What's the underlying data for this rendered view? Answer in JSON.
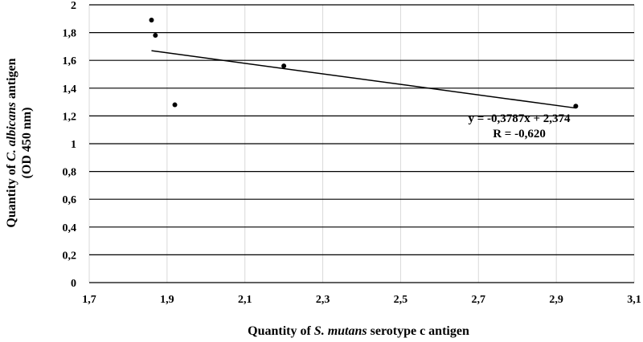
{
  "chart_data": {
    "type": "scatter",
    "xlabel": {
      "prefix": "Quantity of ",
      "italic": "S. mutans",
      "suffix": " serotype c antigen"
    },
    "ylabel": {
      "line1": {
        "prefix": "Quantity of ",
        "italic": "C. albicans",
        "suffix": " antigen"
      },
      "line2": "(OD 450 nm)"
    },
    "xlim": [
      1.7,
      3.1
    ],
    "ylim": [
      0,
      2
    ],
    "x_ticks": [
      "1,7",
      "1,9",
      "2,1",
      "2,3",
      "2,5",
      "2,7",
      "2,9",
      "3,1"
    ],
    "y_ticks": [
      "0",
      "0,2",
      "0,4",
      "0,6",
      "0,8",
      "1",
      "1,2",
      "1,4",
      "1,6",
      "1,8",
      "2"
    ],
    "points": [
      {
        "x": 1.86,
        "y": 1.89
      },
      {
        "x": 1.87,
        "y": 1.78
      },
      {
        "x": 1.92,
        "y": 1.28
      },
      {
        "x": 2.2,
        "y": 1.56
      },
      {
        "x": 2.95,
        "y": 1.27
      }
    ],
    "trendline": {
      "slope": -0.3787,
      "intercept": 2.374,
      "x_range": [
        1.86,
        2.95
      ]
    },
    "equation": "y = -0,3787x + 2,374",
    "r_value": "R = -0,620",
    "grid": true
  }
}
